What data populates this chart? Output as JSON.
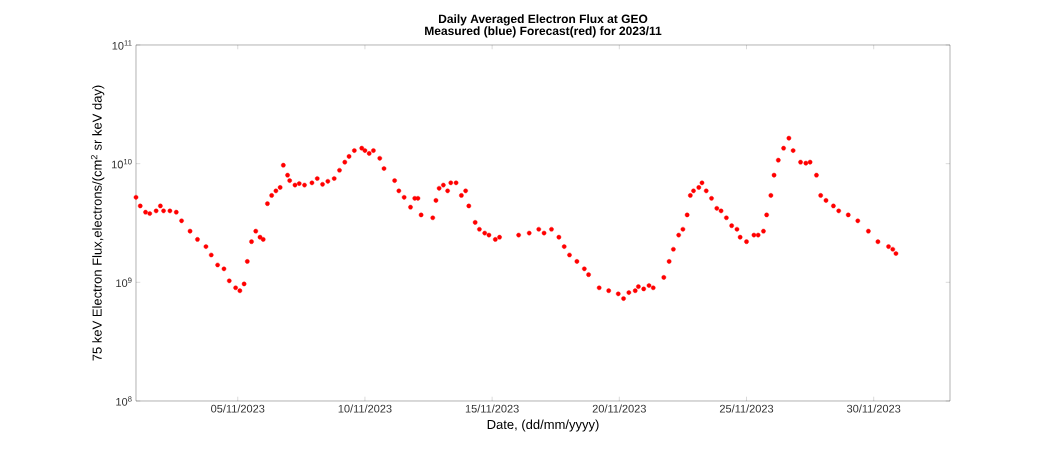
{
  "chart_data": {
    "type": "scatter",
    "title": "Daily Averaged Electron Flux at GEO",
    "subtitle": "Measured (blue) Forecast(red) for 2023/11",
    "xlabel": "Date, (dd/mm/yyyy)",
    "ylabel": "75 keV Electron Flux,electrons/(cm$^{2}$ sr keV day)",
    "log": "y",
    "marker": "circle",
    "grid": false,
    "xlim": [
      "2023-11-01",
      "2023-12-03"
    ],
    "ylim": [
      100000000,
      100000000000
    ],
    "xticks": [
      {
        "value": "2023-11-05",
        "label": "05/11/2023"
      },
      {
        "value": "2023-11-10",
        "label": "10/11/2023"
      },
      {
        "value": "2023-11-15",
        "label": "15/11/2023"
      },
      {
        "value": "2023-11-20",
        "label": "20/11/2023"
      },
      {
        "value": "2023-11-25",
        "label": "25/11/2023"
      },
      {
        "value": "2023-11-30",
        "label": "30/11/2023"
      }
    ],
    "yticks": [
      {
        "value": 100000000,
        "label": "10$^{8}$"
      },
      {
        "value": 1000000000,
        "label": "10$^{9}$"
      },
      {
        "value": 10000000000,
        "label": "10$^{10}$"
      },
      {
        "value": 100000000000,
        "label": "10$^{11}$"
      }
    ],
    "series": [
      {
        "color": "#ff0000",
        "x": [
          "2023-11-01T00:00",
          "2023-11-01T04:00",
          "2023-11-01T09:00",
          "2023-11-01T13:00",
          "2023-11-01T19:00",
          "2023-11-01T23:00",
          "2023-11-02T02:00",
          "2023-11-02T08:00",
          "2023-11-02T14:00",
          "2023-11-02T19:00",
          "2023-11-03T03:00",
          "2023-11-03T10:00",
          "2023-11-03T18:00",
          "2023-11-03T23:00",
          "2023-11-04T05:00",
          "2023-11-04T11:00",
          "2023-11-04T16:00",
          "2023-11-04T22:00",
          "2023-11-05T02:00",
          "2023-11-05T06:00",
          "2023-11-05T09:00",
          "2023-11-05T13:00",
          "2023-11-05T17:00",
          "2023-11-05T21:00",
          "2023-11-06T00:00",
          "2023-11-06T04:00",
          "2023-11-06T08:00",
          "2023-11-06T12:00",
          "2023-11-06T16:00",
          "2023-11-06T19:00",
          "2023-11-06T23:00",
          "2023-11-07T01:00",
          "2023-11-07T06:00",
          "2023-11-07T10:00",
          "2023-11-07T15:00",
          "2023-11-07T22:00",
          "2023-11-08T03:00",
          "2023-11-08T08:00",
          "2023-11-08T13:00",
          "2023-11-08T19:00",
          "2023-11-09T00:00",
          "2023-11-09T05:00",
          "2023-11-09T09:00",
          "2023-11-09T14:00",
          "2023-11-09T21:00",
          "2023-11-10T00:00",
          "2023-11-10T04:00",
          "2023-11-10T08:00",
          "2023-11-10T14:00",
          "2023-11-10T18:00",
          "2023-11-11T04:00",
          "2023-11-11T08:00",
          "2023-11-11T13:00",
          "2023-11-11T19:00",
          "2023-11-11T23:00",
          "2023-11-12T02:00",
          "2023-11-12T05:00",
          "2023-11-12T16:00",
          "2023-11-12T19:00",
          "2023-11-12T22:00",
          "2023-11-13T02:00",
          "2023-11-13T06:00",
          "2023-11-13T09:00",
          "2023-11-13T14:00",
          "2023-11-13T19:00",
          "2023-11-13T23:00",
          "2023-11-14T02:00",
          "2023-11-14T08:00",
          "2023-11-14T12:00",
          "2023-11-14T17:00",
          "2023-11-14T21:00",
          "2023-11-15T03:00",
          "2023-11-15T07:00",
          "2023-11-16T01:00",
          "2023-11-16T11:00",
          "2023-11-16T20:00",
          "2023-11-17T01:00",
          "2023-11-17T08:00",
          "2023-11-17T15:00",
          "2023-11-17T20:00",
          "2023-11-18T01:00",
          "2023-11-18T08:00",
          "2023-11-18T15:00",
          "2023-11-18T19:00",
          "2023-11-19T05:00",
          "2023-11-19T14:00",
          "2023-11-19T23:00",
          "2023-11-20T04:00",
          "2023-11-20T09:00",
          "2023-11-20T15:00",
          "2023-11-20T18:00",
          "2023-11-20T23:00",
          "2023-11-21T04:00",
          "2023-11-21T08:00",
          "2023-11-21T18:00",
          "2023-11-21T23:00",
          "2023-11-22T03:00",
          "2023-11-22T08:00",
          "2023-11-22T12:00",
          "2023-11-22T16:00",
          "2023-11-22T19:00",
          "2023-11-22T22:00",
          "2023-11-23T03:00",
          "2023-11-23T06:00",
          "2023-11-23T10:00",
          "2023-11-23T15:00",
          "2023-11-23T20:00",
          "2023-11-24T00:00",
          "2023-11-24T05:00",
          "2023-11-24T10:00",
          "2023-11-24T15:00",
          "2023-11-24T18:00",
          "2023-11-25T00:00",
          "2023-11-25T07:00",
          "2023-11-25T11:00",
          "2023-11-25T16:00",
          "2023-11-25T19:00",
          "2023-11-25T23:00",
          "2023-11-26T02:00",
          "2023-11-26T06:00",
          "2023-11-26T11:00",
          "2023-11-26T16:00",
          "2023-11-26T20:00",
          "2023-11-27T03:00",
          "2023-11-27T08:00",
          "2023-11-27T12:00",
          "2023-11-27T18:00",
          "2023-11-27T22:00",
          "2023-11-28T03:00",
          "2023-11-28T10:00",
          "2023-11-28T15:00",
          "2023-11-29T00:00",
          "2023-11-29T09:00",
          "2023-11-29T19:00",
          "2023-11-30T04:00",
          "2023-11-30T14:00",
          "2023-11-30T18:00",
          "2023-11-30T21:00"
        ],
        "values": [
          5200000000.0,
          4400000000.0,
          3900000000.0,
          3800000000.0,
          4000000000.0,
          4400000000.0,
          4000000000.0,
          4000000000.0,
          3900000000.0,
          3300000000.0,
          2700000000.0,
          2300000000.0,
          2000000000.0,
          1700000000.0,
          1400000000.0,
          1300000000.0,
          1030000000.0,
          900000000.0,
          850000000.0,
          970000000.0,
          1500000000.0,
          2200000000.0,
          2700000000.0,
          2400000000.0,
          2300000000.0,
          4600000000.0,
          5400000000.0,
          5900000000.0,
          6300000000.0,
          9700000000.0,
          8000000000.0,
          7200000000.0,
          6600000000.0,
          6800000000.0,
          6600000000.0,
          6900000000.0,
          7500000000.0,
          6700000000.0,
          7100000000.0,
          7500000000.0,
          8800000000.0,
          10300000000.0,
          11500000000.0,
          12900000000.0,
          13500000000.0,
          12900000000.0,
          12200000000.0,
          12900000000.0,
          11100000000.0,
          9100000000.0,
          7200000000.0,
          5900000000.0,
          5200000000.0,
          4300000000.0,
          5100000000.0,
          5100000000.0,
          3700000000.0,
          3500000000.0,
          4900000000.0,
          6200000000.0,
          6600000000.0,
          5900000000.0,
          6900000000.0,
          6900000000.0,
          5400000000.0,
          5900000000.0,
          4400000000.0,
          3200000000.0,
          2800000000.0,
          2600000000.0,
          2500000000.0,
          2300000000.0,
          2400000000.0,
          2500000000.0,
          2600000000.0,
          2800000000.0,
          2600000000.0,
          2800000000.0,
          2400000000.0,
          2000000000.0,
          1700000000.0,
          1500000000.0,
          1300000000.0,
          1160000000.0,
          900000000.0,
          850000000.0,
          800000000.0,
          730000000.0,
          820000000.0,
          850000000.0,
          920000000.0,
          880000000.0,
          940000000.0,
          900000000.0,
          1100000000.0,
          1500000000.0,
          1900000000.0,
          2500000000.0,
          2800000000.0,
          3700000000.0,
          5400000000.0,
          5900000000.0,
          6300000000.0,
          6900000000.0,
          5900000000.0,
          5100000000.0,
          4200000000.0,
          4000000000.0,
          3500000000.0,
          3000000000.0,
          2800000000.0,
          2400000000.0,
          2200000000.0,
          2500000000.0,
          2500000000.0,
          2700000000.0,
          3700000000.0,
          5400000000.0,
          8000000000.0,
          10700000000.0,
          13500000000.0,
          16400000000.0,
          12900000000.0,
          10300000000.0,
          10100000000.0,
          10300000000.0,
          8000000000.0,
          5400000000.0,
          4900000000.0,
          4400000000.0,
          4000000000.0,
          3700000000.0,
          3300000000.0,
          2700000000.0,
          2200000000.0,
          2000000000.0,
          1900000000.0,
          1750000000.0
        ]
      }
    ]
  }
}
